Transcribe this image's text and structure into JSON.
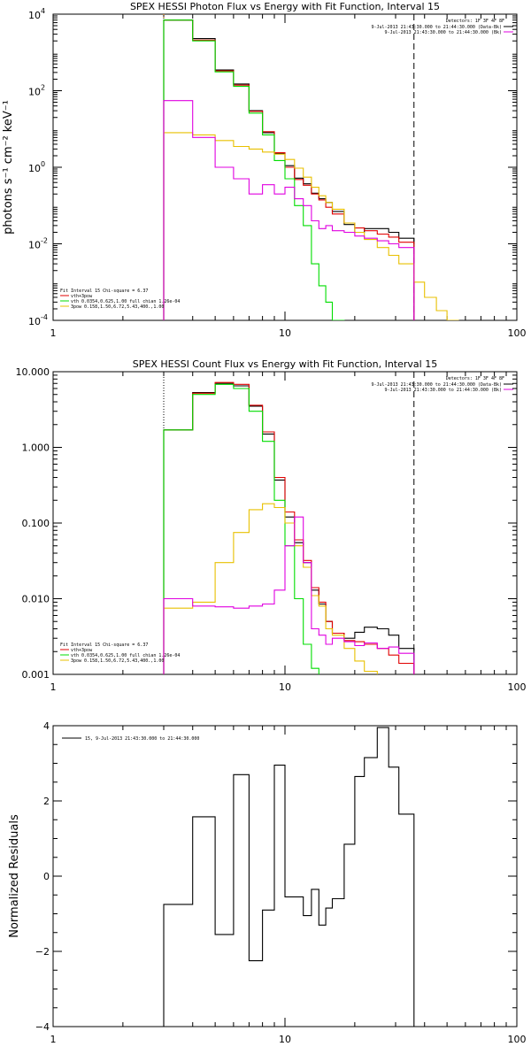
{
  "colors": {
    "black": "#000000",
    "red": "#e00000",
    "green": "#00dd00",
    "magenta": "#e000e0",
    "yellow": "#e8c000",
    "orange": "#ff8c00"
  },
  "chart_data": [
    {
      "type": "line",
      "title": "SPEX HESSI Photon Flux vs Energy with Fit Function, Interval 15",
      "ylabel": "photons s⁻¹ cm⁻² keV⁻¹",
      "xlabel": "",
      "xscale": "log",
      "yscale": "log",
      "xlim": [
        1,
        100
      ],
      "ylim": [
        0.0001,
        10000
      ],
      "xticks": [
        {
          "v": 1,
          "label": "1"
        },
        {
          "v": 10,
          "label": "10"
        },
        {
          "v": 100,
          "label": "100"
        }
      ],
      "yticks": [
        {
          "v": 0.0001,
          "base": "10",
          "exp": "-4"
        },
        {
          "v": 0.01,
          "base": "10",
          "exp": "-2"
        },
        {
          "v": 1,
          "base": "10",
          "exp": "0"
        },
        {
          "v": 100,
          "base": "10",
          "exp": "2"
        },
        {
          "v": 10000,
          "base": "10",
          "exp": "4"
        }
      ],
      "vlines": [
        {
          "x": 3,
          "style": "dotted",
          "color": "orange"
        },
        {
          "x": 36,
          "style": "dashed",
          "color": "black"
        }
      ],
      "legend_tr": {
        "detectors": "Detectors: 1F 3F 4F 8F",
        "lines": [
          {
            "text": "9-Jul-2013 21:43:30.000 to 21:44:30.000 (Data-Bk)",
            "color": "black"
          },
          {
            "text": "9-Jul-2013 21:43:30.000 to 21:44:30.000 (Bk)",
            "color": "magenta"
          }
        ]
      },
      "legend_bl": {
        "header": "Fit Interval 15   Chi-square = 6.37",
        "lines": [
          {
            "text": "vth+3pow",
            "color": "red"
          },
          {
            "text": "vth 0.0354,0.625,1.00  full chian 1.26e-04",
            "color": "green"
          },
          {
            "text": "3pow 0.158,1.50,6.72,5.43,400.,1.00",
            "color": "yellow"
          }
        ]
      },
      "series": [
        {
          "name": "Data-Bk",
          "color": "black",
          "edges": [
            3,
            4,
            5,
            6,
            7,
            8,
            9,
            10,
            11,
            12,
            13,
            14,
            15,
            16,
            18,
            20,
            22,
            25,
            28,
            31,
            36
          ],
          "values": [
            7000,
            2300,
            350,
            150,
            30,
            8,
            2.3,
            1.1,
            0.52,
            0.37,
            0.21,
            0.15,
            0.12,
            0.07,
            0.032,
            0.02,
            0.025,
            0.025,
            0.02,
            0.014
          ]
        },
        {
          "name": "vth+3pow",
          "color": "red",
          "edges": [
            3,
            4,
            5,
            6,
            7,
            8,
            9,
            10,
            11,
            12,
            13,
            14,
            15,
            16,
            18,
            20,
            22,
            25,
            28,
            31,
            36
          ],
          "values": [
            7000,
            2100,
            330,
            140,
            29,
            8.5,
            2.4,
            1.0,
            0.48,
            0.34,
            0.2,
            0.14,
            0.09,
            0.06,
            0.035,
            0.026,
            0.022,
            0.018,
            0.015,
            0.011
          ]
        },
        {
          "name": "vth",
          "color": "green",
          "edges": [
            3,
            4,
            5,
            6,
            7,
            8,
            9,
            10,
            11,
            12,
            13,
            14,
            15,
            16,
            18
          ],
          "values": [
            7000,
            2000,
            310,
            130,
            26,
            7,
            1.5,
            0.5,
            0.1,
            0.03,
            0.003,
            0.0008,
            0.0003,
            0.0001
          ]
        },
        {
          "name": "3pow",
          "color": "yellow",
          "edges": [
            3,
            4,
            5,
            6,
            7,
            8,
            9,
            10,
            11,
            12,
            13,
            14,
            15,
            16,
            18,
            20,
            22,
            25,
            28,
            31,
            36,
            40,
            45,
            50,
            56
          ],
          "values": [
            8,
            7,
            5,
            3.5,
            3,
            2.5,
            2.2,
            1.6,
            0.95,
            0.55,
            0.3,
            0.18,
            0.12,
            0.08,
            0.035,
            0.02,
            0.013,
            0.008,
            0.005,
            0.003,
            0.001,
            0.0004,
            0.00018,
            0.0001
          ]
        },
        {
          "name": "Bk",
          "color": "magenta",
          "edges": [
            3,
            4,
            5,
            6,
            7,
            8,
            9,
            10,
            11,
            12,
            13,
            14,
            15,
            16,
            18,
            20,
            22,
            25,
            28,
            31,
            36
          ],
          "values": [
            55,
            6,
            1,
            0.5,
            0.2,
            0.35,
            0.2,
            0.3,
            0.15,
            0.1,
            0.04,
            0.025,
            0.03,
            0.022,
            0.02,
            0.016,
            0.014,
            0.012,
            0.01,
            0.008
          ]
        }
      ]
    },
    {
      "type": "line",
      "title": "SPEX HESSI Count Flux vs Energy with Fit Function, Interval 15",
      "ylabel": "",
      "xlabel": "",
      "xscale": "log",
      "yscale": "log",
      "xlim": [
        1,
        100
      ],
      "ylim": [
        0.001,
        10
      ],
      "xticks": [
        {
          "v": 1,
          "label": "1"
        },
        {
          "v": 10,
          "label": "10"
        },
        {
          "v": 100,
          "label": "100"
        }
      ],
      "yticks": [
        {
          "v": 0.001,
          "label": "0.001"
        },
        {
          "v": 0.01,
          "label": "0.010"
        },
        {
          "v": 0.1,
          "label": "0.100"
        },
        {
          "v": 1,
          "label": "1.000"
        },
        {
          "v": 10,
          "label": "10.000"
        }
      ],
      "vlines": [
        {
          "x": 3,
          "style": "dotted",
          "color": "black"
        },
        {
          "x": 36,
          "style": "dashed",
          "color": "black"
        }
      ],
      "legend_tr": {
        "detectors": "Detectors: 1F 3F 4F 8F",
        "lines": [
          {
            "text": "9-Jul-2013 21:43:30.000 to 21:44:30.000 (Data-Bk)",
            "color": "black"
          },
          {
            "text": "9-Jul-2013 21:43:30.000 to 21:44:30.000 (Bk)",
            "color": "magenta"
          }
        ]
      },
      "legend_bl": {
        "header": "Fit Interval 15   Chi-square = 6.37",
        "lines": [
          {
            "text": "vth+3pow",
            "color": "red"
          },
          {
            "text": "vth 0.0354,0.625,1.00  full chian 1.26e-04",
            "color": "green"
          },
          {
            "text": "3pow 0.158,1.50,6.72,5.43,400.,1.00",
            "color": "yellow"
          }
        ]
      },
      "series": [
        {
          "name": "Data-Bk",
          "color": "black",
          "edges": [
            3,
            4,
            5,
            6,
            7,
            8,
            9,
            10,
            11,
            12,
            13,
            14,
            15,
            16,
            18,
            20,
            22,
            25,
            28,
            31,
            36
          ],
          "values": [
            1.7,
            5.3,
            7.0,
            6.5,
            3.5,
            1.5,
            0.37,
            0.12,
            0.055,
            0.03,
            0.013,
            0.0085,
            0.005,
            0.0035,
            0.003,
            0.0036,
            0.0042,
            0.004,
            0.0033,
            0.0022
          ]
        },
        {
          "name": "vth+3pow",
          "color": "red",
          "edges": [
            3,
            4,
            5,
            6,
            7,
            8,
            9,
            10,
            11,
            12,
            13,
            14,
            15,
            16,
            18,
            20,
            22,
            25,
            28,
            31,
            36
          ],
          "values": [
            1.7,
            5.2,
            7.2,
            6.8,
            3.6,
            1.6,
            0.4,
            0.14,
            0.06,
            0.032,
            0.014,
            0.009,
            0.005,
            0.0035,
            0.0028,
            0.0027,
            0.0025,
            0.0022,
            0.0018,
            0.0014
          ]
        },
        {
          "name": "vth",
          "color": "green",
          "edges": [
            3,
            4,
            5,
            6,
            7,
            8,
            9,
            10,
            11,
            12,
            13,
            14
          ],
          "values": [
            1.7,
            5.0,
            6.8,
            6.0,
            3.0,
            1.2,
            0.2,
            0.05,
            0.01,
            0.0025,
            0.0012
          ]
        },
        {
          "name": "3pow",
          "color": "yellow",
          "edges": [
            3,
            4,
            5,
            6,
            7,
            8,
            9,
            10,
            11,
            12,
            13,
            14,
            15,
            16,
            18,
            20,
            22,
            25
          ],
          "values": [
            0.0075,
            0.009,
            0.03,
            0.075,
            0.15,
            0.18,
            0.16,
            0.1,
            0.05,
            0.026,
            0.011,
            0.008,
            0.004,
            0.0033,
            0.0022,
            0.0015,
            0.0011
          ]
        },
        {
          "name": "Bk",
          "color": "magenta",
          "edges": [
            3,
            4,
            5,
            6,
            7,
            8,
            9,
            10,
            11,
            12,
            13,
            14,
            15,
            16,
            18,
            20,
            22,
            25,
            28,
            31,
            36
          ],
          "values": [
            0.01,
            0.008,
            0.0078,
            0.0075,
            0.008,
            0.0085,
            0.013,
            0.05,
            0.12,
            0.03,
            0.004,
            0.0033,
            0.0025,
            0.003,
            0.0027,
            0.0024,
            0.0026,
            0.0022,
            0.0023,
            0.0019
          ]
        }
      ]
    },
    {
      "type": "line",
      "title": "",
      "ylabel": "Normalized Residuals",
      "xlabel": "",
      "xscale": "log",
      "yscale": "linear",
      "xlim": [
        1,
        100
      ],
      "ylim": [
        -4,
        4
      ],
      "xticks": [
        {
          "v": 1,
          "label": "1"
        },
        {
          "v": 10,
          "label": "10"
        },
        {
          "v": 100,
          "label": "100"
        }
      ],
      "yticks": [
        {
          "v": -4,
          "label": "−4"
        },
        {
          "v": -2,
          "label": "−2"
        },
        {
          "v": 0,
          "label": "0"
        },
        {
          "v": 2,
          "label": "2"
        },
        {
          "v": 4,
          "label": "4"
        }
      ],
      "legend_tl": {
        "text": "15,  9-Jul-2013 21:43:30.000 to 21:44:30.000"
      },
      "series": [
        {
          "name": "15",
          "color": "black",
          "edges": [
            3,
            4,
            5,
            6,
            7,
            8,
            9,
            10,
            11,
            12,
            13,
            14,
            15,
            16,
            18,
            20,
            22,
            25,
            28,
            31,
            36
          ],
          "values": [
            -0.75,
            1.58,
            -1.55,
            2.7,
            -2.25,
            -0.9,
            2.95,
            -0.55,
            -0.55,
            -1.05,
            -0.35,
            -1.3,
            -0.85,
            -0.6,
            0.85,
            2.65,
            3.15,
            3.95,
            2.9,
            1.65
          ]
        }
      ]
    }
  ]
}
